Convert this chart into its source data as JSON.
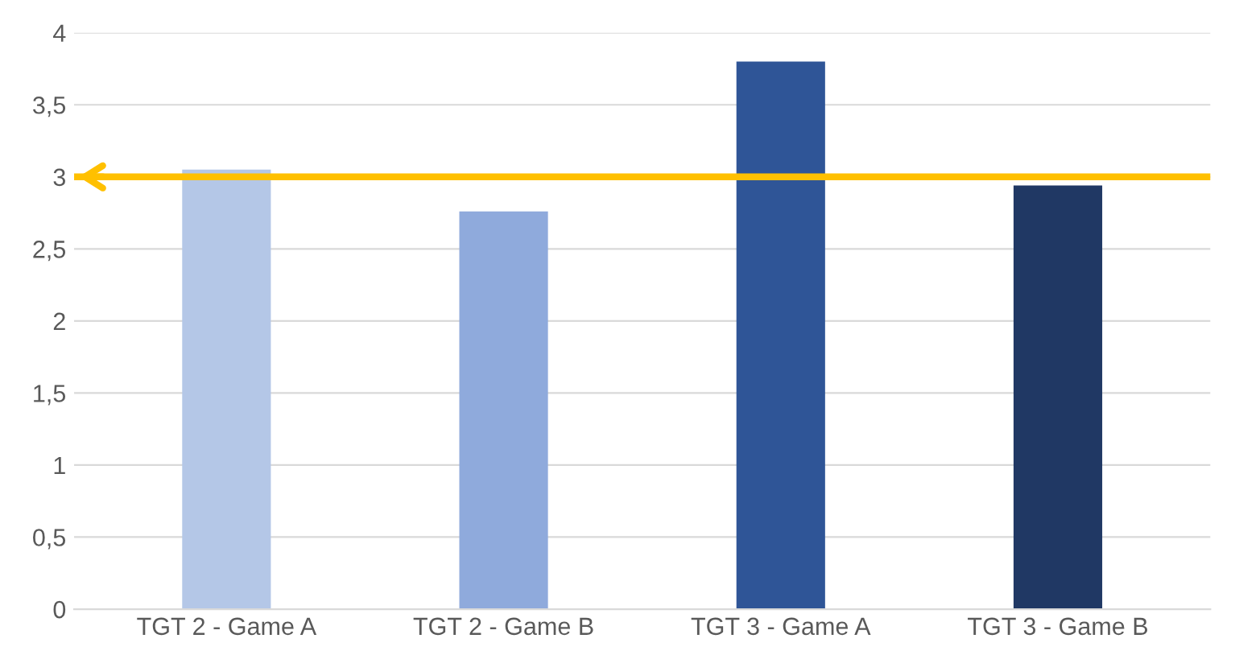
{
  "chart_data": {
    "type": "bar",
    "categories": [
      "TGT 2 - Game A",
      "TGT 2 - Game B",
      "TGT 3 - Game A",
      "TGT 3 - Game B"
    ],
    "values": [
      3.05,
      2.76,
      3.8,
      2.94
    ],
    "colors": [
      "#b4c7e7",
      "#8faadc",
      "#2f5597",
      "#203864"
    ],
    "ylim": [
      0,
      4
    ],
    "yticks": [
      0,
      {
        "value": 0.5,
        "label": "0,5"
      },
      1,
      {
        "value": 1.5,
        "label": "1,5"
      },
      2,
      {
        "value": 2.5,
        "label": "2,5"
      },
      3,
      {
        "value": 3.5,
        "label": "3,5"
      },
      4
    ],
    "grid": "y",
    "ref_lines": [
      {
        "axis": "y",
        "value": 3,
        "color": "#ffc000",
        "line_style": "solid"
      }
    ]
  }
}
